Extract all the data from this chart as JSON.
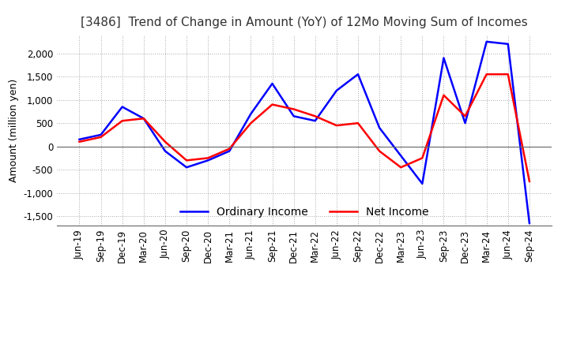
{
  "title": "[3486]  Trend of Change in Amount (YoY) of 12Mo Moving Sum of Incomes",
  "ylabel": "Amount (million yen)",
  "ylim": [
    -1700,
    2400
  ],
  "yticks": [
    -1500,
    -1000,
    -500,
    0,
    500,
    1000,
    1500,
    2000
  ],
  "line_colors": {
    "ordinary": "#0000FF",
    "net": "#FF0000"
  },
  "legend_labels": [
    "Ordinary Income",
    "Net Income"
  ],
  "x_labels": [
    "Jun-19",
    "Sep-19",
    "Dec-19",
    "Mar-20",
    "Jun-20",
    "Sep-20",
    "Dec-20",
    "Mar-21",
    "Jun-21",
    "Sep-21",
    "Dec-21",
    "Mar-22",
    "Jun-22",
    "Sep-22",
    "Dec-22",
    "Mar-23",
    "Jun-23",
    "Sep-23",
    "Dec-23",
    "Mar-24",
    "Jun-24",
    "Sep-24"
  ],
  "ordinary_income": [
    150,
    250,
    850,
    600,
    -100,
    -450,
    -300,
    -100,
    700,
    1350,
    650,
    550,
    1200,
    1550,
    400,
    -200,
    -800,
    1900,
    500,
    2250,
    2200,
    -1650
  ],
  "net_income": [
    100,
    200,
    550,
    600,
    100,
    -300,
    -250,
    -50,
    500,
    900,
    800,
    650,
    450,
    500,
    -100,
    -450,
    -250,
    1100,
    650,
    1550,
    1550,
    -750
  ],
  "background_color": "#ffffff",
  "grid_color": "#aaaaaa",
  "title_fontsize": 11,
  "axis_fontsize": 9,
  "tick_fontsize": 8.5
}
